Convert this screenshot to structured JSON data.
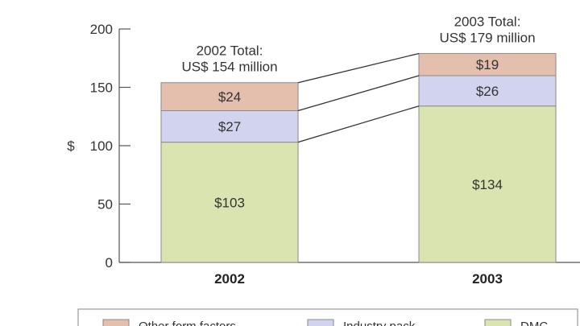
{
  "chart_data": {
    "type": "bar",
    "stacked": true,
    "categories": [
      "2002",
      "2003"
    ],
    "series": [
      {
        "name": "DMC",
        "values": [
          103,
          134
        ],
        "labels": [
          "$103",
          "$134"
        ],
        "color": "#d9e4b0"
      },
      {
        "name": "Industry pack",
        "values": [
          27,
          26
        ],
        "labels": [
          "$27",
          "$26"
        ],
        "color": "#d2d4ef"
      },
      {
        "name": "Other form factors",
        "values": [
          24,
          19
        ],
        "labels": [
          "$24",
          "$19"
        ],
        "color": "#e4bfae"
      }
    ],
    "totals": [
      {
        "line1": "2002 Total:",
        "line2": "US$ 154 million"
      },
      {
        "line1": "2003 Total:",
        "line2": "US$ 179 million"
      }
    ],
    "ylabel": "$",
    "ylim": [
      0,
      200
    ],
    "yticks": [
      0,
      50,
      100,
      150,
      200
    ],
    "legend": [
      "Other form factors",
      "Industry pack",
      "DMC"
    ],
    "legend_placement": "bottom",
    "connector_lines": true
  }
}
